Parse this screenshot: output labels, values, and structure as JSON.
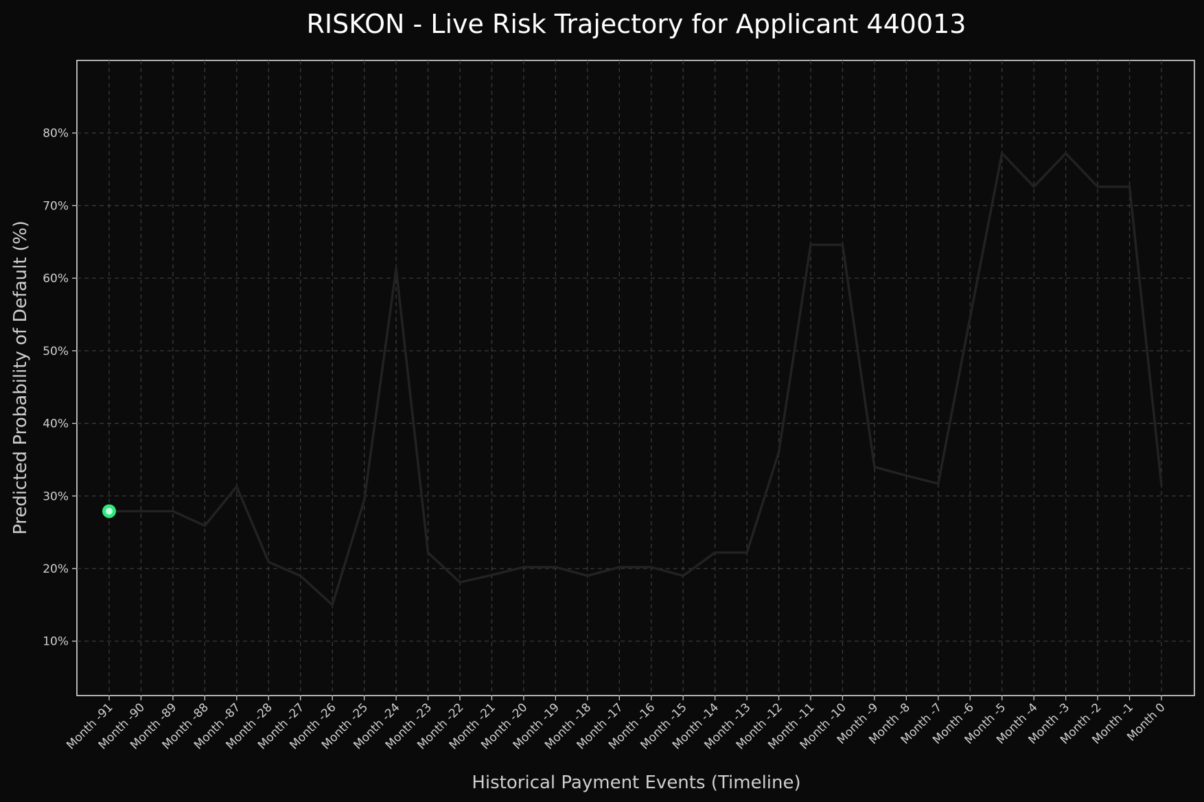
{
  "chart_data": {
    "type": "line",
    "title": "RISKON - Live Risk Trajectory for Applicant 440013",
    "xlabel": "Historical Payment Events (Timeline)",
    "ylabel": "Predicted Probability of Default (%)",
    "ylim": [
      2.5,
      90
    ],
    "yticks": [
      10,
      20,
      30,
      40,
      50,
      60,
      70,
      80
    ],
    "ytick_labels": [
      "10%",
      "20%",
      "30%",
      "40%",
      "50%",
      "60%",
      "70%",
      "80%"
    ],
    "grid": true,
    "categories": [
      "Month -91",
      "Month -90",
      "Month -89",
      "Month -88",
      "Month -87",
      "Month -28",
      "Month -27",
      "Month -26",
      "Month -25",
      "Month -24",
      "Month -23",
      "Month -22",
      "Month -21",
      "Month -20",
      "Month -19",
      "Month -18",
      "Month -17",
      "Month -16",
      "Month -15",
      "Month -14",
      "Month -13",
      "Month -12",
      "Month -11",
      "Month -10",
      "Month -9",
      "Month -8",
      "Month -7",
      "Month -6",
      "Month -5",
      "Month -4",
      "Month -3",
      "Month -2",
      "Month -1",
      "Month 0"
    ],
    "series": [
      {
        "values": [
          27.9,
          27.9,
          27.9,
          25.9,
          31.3,
          20.9,
          19.0,
          15.0,
          29.4,
          61.3,
          22.2,
          18.1,
          19.1,
          20.2,
          20.2,
          19.0,
          20.2,
          20.2,
          19.0,
          22.2,
          22.2,
          36.0,
          64.6,
          64.6,
          34.0,
          32.8,
          31.7,
          54.6,
          77.2,
          72.6,
          77.2,
          72.6,
          72.6,
          31.5
        ],
        "color": "#222222"
      }
    ],
    "highlight": {
      "category": "Month -91",
      "value": 27.9,
      "color": "#2eea7e",
      "inner_color": "#c8ffdf"
    }
  }
}
